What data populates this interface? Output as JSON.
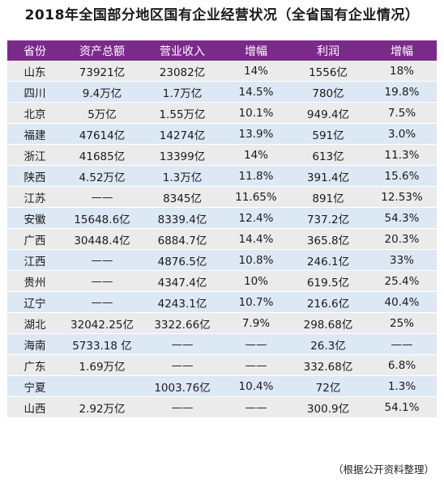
{
  "title": "2018年全国部分地区国有企业经营状况（全省国有企业情况）",
  "table": {
    "headers": [
      "省份",
      "资产总额",
      "营业收入",
      "增幅",
      "利润",
      "增幅"
    ],
    "rows": [
      [
        "山东",
        "73921亿",
        "23082亿",
        "14%",
        "1556亿",
        "18%"
      ],
      [
        "四川",
        "9.4万亿",
        "1.7万亿",
        "14.5%",
        "780亿",
        "19.8%"
      ],
      [
        "北京",
        "5万亿",
        "1.55万亿",
        "10.1%",
        "949.4亿",
        "7.5%"
      ],
      [
        "福建",
        "47614亿",
        "14274亿",
        "13.9%",
        "591亿",
        "3.0%"
      ],
      [
        "浙江",
        "41685亿",
        "13399亿",
        "14%",
        "613亿",
        "11.3%"
      ],
      [
        "陕西",
        "4.52万亿",
        "1.3万亿",
        "11.8%",
        "391.4亿",
        "15.6%"
      ],
      [
        "江苏",
        "——",
        "8345亿",
        "11.65%",
        "891亿",
        "12.53%"
      ],
      [
        "安徽",
        "15648.6亿",
        "8339.4亿",
        "12.4%",
        "737.2亿",
        "54.3%"
      ],
      [
        "广西",
        "30448.4亿",
        "6884.7亿",
        "14.4%",
        "365.8亿",
        "20.3%"
      ],
      [
        "江西",
        "——",
        "4876.5亿",
        "10.8%",
        "246.1亿",
        "33%"
      ],
      [
        "贵州",
        "——",
        "4347.4亿",
        "10%",
        "619.5亿",
        "25.4%"
      ],
      [
        "辽宁",
        "——",
        "4243.1亿",
        "10.7%",
        "216.6亿",
        "40.4%"
      ],
      [
        "湖北",
        "32042.25亿",
        "3322.66亿",
        "7.9%",
        "298.68亿",
        "25%"
      ],
      [
        "海南",
        "5733.18 亿",
        "——",
        "——",
        "26.3亿",
        "——"
      ],
      [
        "广东",
        "1.69万亿",
        "——",
        "——",
        "332.68亿",
        "6.8%"
      ],
      [
        "宁夏",
        "",
        "1003.76亿",
        "10.4%",
        "72亿",
        "1.3%"
      ],
      [
        "山西",
        "2.92万亿",
        "——",
        "——",
        "300.9亿",
        "54.1%"
      ]
    ]
  },
  "note": "（根据公开资料整理）",
  "colors": {
    "header_bg": "#7a2a8a",
    "row_gray": "#ebebeb",
    "row_blue": "#dde8f5"
  }
}
